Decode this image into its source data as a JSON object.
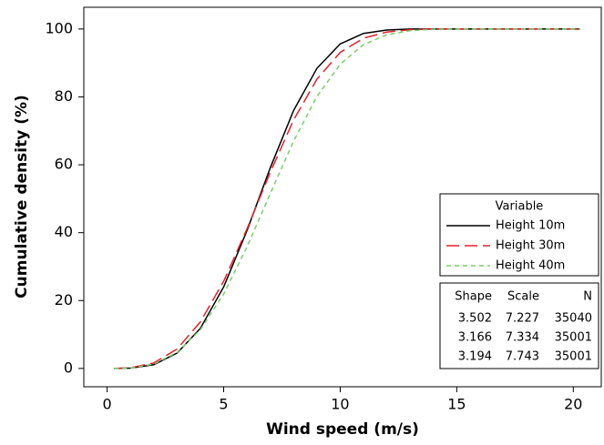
{
  "chart_data": {
    "type": "line",
    "xlabel": "Wind speed (m/s)",
    "ylabel": "Cumulative density (%)",
    "x": [
      0.3,
      1,
      2,
      3,
      4,
      5,
      6,
      7,
      8,
      9,
      10,
      11,
      12,
      13,
      14,
      15,
      16,
      17,
      18,
      19,
      20,
      20.3
    ],
    "series": [
      {
        "name": "Height 10m",
        "color": "#000000",
        "dash": "",
        "values": [
          0,
          0.1,
          1.1,
          4.5,
          11.8,
          24.0,
          40.6,
          59.1,
          76.0,
          88.4,
          95.6,
          98.7,
          99.7,
          100,
          100,
          100,
          100,
          100,
          100,
          100,
          100,
          100
        ]
      },
      {
        "name": "Height 30m",
        "color": "#e8202a",
        "dash": "14 6",
        "values": [
          0,
          0.2,
          1.6,
          5.7,
          13.7,
          25.7,
          41.1,
          57.8,
          73.2,
          85.2,
          93.1,
          97.3,
          99.1,
          99.8,
          100,
          100,
          100,
          100,
          100,
          100,
          100,
          100
        ]
      },
      {
        "name": "Height 40m",
        "color": "#7ccc6c",
        "dash": "5 4",
        "values": [
          0,
          0.1,
          1.3,
          4.7,
          11.4,
          21.9,
          35.8,
          51.5,
          67.0,
          80.1,
          89.6,
          95.4,
          98.3,
          99.5,
          99.9,
          100,
          100,
          100,
          100,
          100,
          100,
          100
        ]
      }
    ],
    "xlim": [
      -1,
      21.2
    ],
    "ylim": [
      -5.4,
      106.4
    ],
    "xticks": [
      0,
      5,
      10,
      15,
      20
    ],
    "yticks": [
      0,
      20,
      40,
      60,
      80,
      100
    ],
    "legend_title": "Variable",
    "stats": {
      "columns": [
        "Shape",
        "Scale",
        "N"
      ],
      "rows": [
        [
          3.502,
          7.227,
          35040
        ],
        [
          3.166,
          7.334,
          35001
        ],
        [
          3.194,
          7.743,
          35001
        ]
      ]
    }
  }
}
